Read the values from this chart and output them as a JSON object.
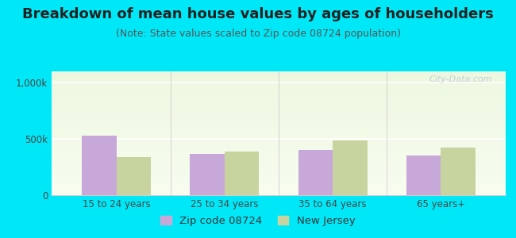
{
  "title": "Breakdown of mean house values by ages of householders",
  "subtitle": "(Note: State values scaled to Zip code 08724 population)",
  "categories": [
    "15 to 24 years",
    "25 to 34 years",
    "35 to 64 years",
    "65 years+"
  ],
  "zip_values": [
    530000,
    370000,
    400000,
    355000
  ],
  "nj_values": [
    340000,
    385000,
    490000,
    420000
  ],
  "zip_color": "#c8a8d8",
  "nj_color": "#c8d4a0",
  "ylim": [
    0,
    1100000
  ],
  "ytick_labels": [
    "0",
    "500k",
    "1,000k"
  ],
  "background_outer": "#00e8f8",
  "legend_zip_label": "Zip code 08724",
  "legend_nj_label": "New Jersey",
  "watermark": "City-Data.com",
  "bar_width": 0.32,
  "title_fontsize": 13,
  "subtitle_fontsize": 9,
  "tick_fontsize": 8.5,
  "legend_fontsize": 9.5
}
